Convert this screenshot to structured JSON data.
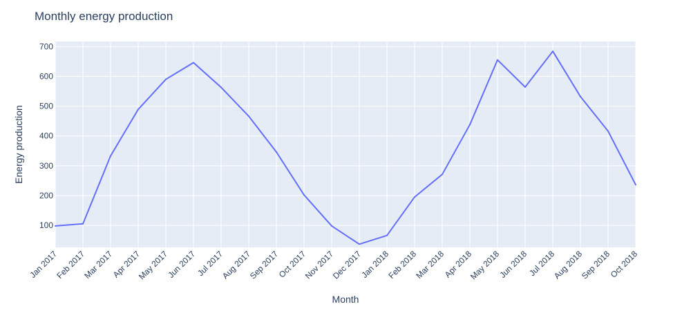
{
  "chart_data": {
    "type": "line",
    "title": "Monthly energy production",
    "xlabel": "Month",
    "ylabel": "Energy production",
    "categories": [
      "Jan 2017",
      "Feb 2017",
      "Mar 2017",
      "Apr 2017",
      "May 2017",
      "Jun 2017",
      "Jul 2017",
      "Aug 2017",
      "Sep 2017",
      "Oct 2017",
      "Nov 2017",
      "Dec 2017",
      "Jan 2018",
      "Feb 2018",
      "Mar 2018",
      "Apr 2018",
      "May 2018",
      "Jun 2018",
      "Jul 2018",
      "Aug 2018",
      "Sep 2018",
      "Oct 2018"
    ],
    "series": [
      {
        "values": [
          98,
          105,
          333,
          489,
          590,
          646,
          563,
          466,
          346,
          202,
          98,
          37,
          66,
          195,
          271,
          438,
          655,
          564,
          684,
          532,
          416,
          236
        ]
      }
    ],
    "yticks": [
      100,
      200,
      300,
      400,
      500,
      600,
      700
    ],
    "ylim": [
      26,
      717
    ],
    "grid": true,
    "colors": {
      "line": "#636efa",
      "plot_bg": "#e5ecf6",
      "grid": "#ffffff",
      "text": "#2a3f5f"
    }
  }
}
